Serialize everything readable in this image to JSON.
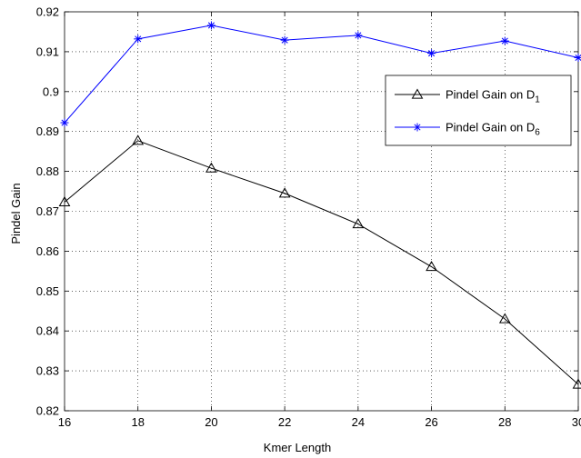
{
  "chart_data": {
    "type": "line",
    "title": "",
    "xlabel": "Kmer Length",
    "ylabel": "Pindel Gain",
    "xlim": [
      16,
      30
    ],
    "ylim": [
      0.82,
      0.92
    ],
    "xticks": [
      "16",
      "18",
      "20",
      "22",
      "24",
      "26",
      "28",
      "30"
    ],
    "yticks": [
      "0.82",
      "0.83",
      "0.84",
      "0.85",
      "0.86",
      "0.87",
      "0.88",
      "0.89",
      "0.9",
      "0.91",
      "0.92"
    ],
    "grid": true,
    "legend_position": "right",
    "x": [
      16,
      18,
      20,
      22,
      24,
      26,
      28,
      30
    ],
    "series": [
      {
        "name": "Pindel Gain on D1",
        "label_main": "Pindel Gain on D",
        "label_sub": "1",
        "color": "#000000",
        "marker": "triangle",
        "values": [
          0.8723,
          0.8877,
          0.8808,
          0.8745,
          0.8668,
          0.8561,
          0.843,
          0.8266
        ]
      },
      {
        "name": "Pindel Gain on D6",
        "label_main": "Pindel Gain on D",
        "label_sub": "6",
        "color": "#0000ff",
        "marker": "star",
        "values": [
          0.8922,
          0.9132,
          0.9166,
          0.9129,
          0.9141,
          0.9096,
          0.9127,
          0.9085
        ]
      }
    ]
  }
}
